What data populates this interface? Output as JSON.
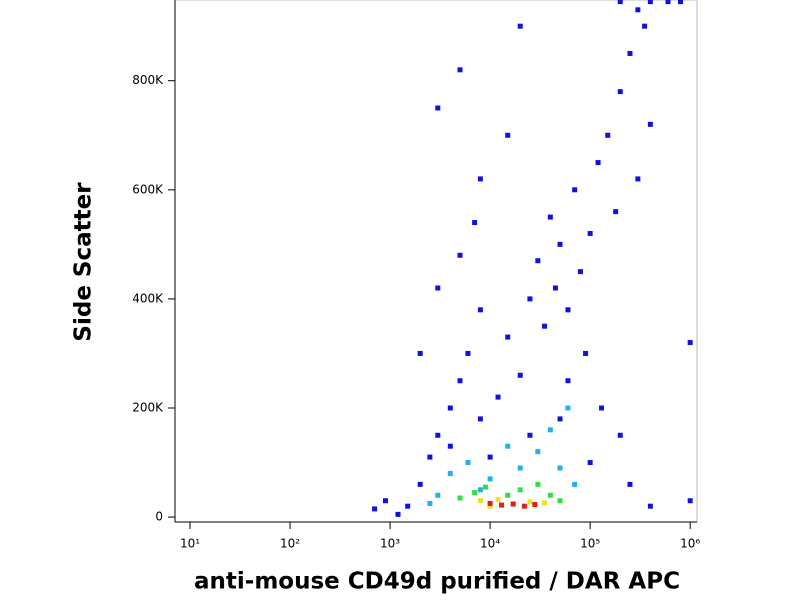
{
  "chart_data": {
    "type": "scatter",
    "xlabel": "anti-mouse CD49d purified / DAR APC",
    "ylabel": "Side Scatter",
    "xscale": "log",
    "xlim": [
      7.08,
      1170000
    ],
    "ylim": [
      -9000,
      948000
    ],
    "xticks": [
      {
        "value": 10,
        "label": "10¹"
      },
      {
        "value": 100,
        "label": "10²"
      },
      {
        "value": 1000,
        "label": "10³"
      },
      {
        "value": 10000,
        "label": "10⁴"
      },
      {
        "value": 100000,
        "label": "10⁵"
      },
      {
        "value": 1000000,
        "label": "10⁶"
      }
    ],
    "yticks": [
      0,
      {
        "value": 200000,
        "label": "200K"
      },
      {
        "value": 400000,
        "label": "400K"
      },
      {
        "value": 600000,
        "label": "600K"
      },
      {
        "value": 800000,
        "label": "800K"
      }
    ],
    "series": [
      {
        "color": "#1010e0",
        "x": [
          1500,
          2000,
          2500,
          3000,
          4000,
          5000,
          6000,
          8000,
          12000,
          15000,
          20000,
          25000,
          30000,
          35000,
          40000,
          45000,
          50000,
          60000,
          70000,
          80000,
          100000,
          120000,
          150000,
          180000,
          200000,
          250000,
          300000,
          350000,
          400000,
          300000,
          1200,
          900,
          700,
          3000,
          5000,
          2000,
          8000,
          60000,
          90000,
          130000,
          200000,
          250000,
          400000,
          1000000,
          1000000,
          200000,
          400000,
          600000,
          800000,
          10000,
          25000,
          50000,
          5000,
          3000,
          15000,
          8000,
          4000,
          100000,
          20000,
          7000
        ],
        "y": [
          20000,
          60000,
          110000,
          150000,
          200000,
          250000,
          300000,
          180000,
          220000,
          330000,
          260000,
          400000,
          470000,
          350000,
          550000,
          420000,
          500000,
          380000,
          600000,
          450000,
          520000,
          650000,
          700000,
          560000,
          780000,
          850000,
          620000,
          900000,
          720000,
          930000,
          5000,
          30000,
          15000,
          420000,
          480000,
          300000,
          380000,
          250000,
          300000,
          200000,
          150000,
          60000,
          20000,
          320000,
          30000,
          945000,
          945000,
          945000,
          945000,
          110000,
          150000,
          180000,
          820000,
          750000,
          700000,
          620000,
          130000,
          100000,
          900000,
          540000
        ]
      },
      {
        "color": "#20b0f0",
        "x": [
          3000,
          4000,
          6000,
          10000,
          20000,
          30000,
          40000,
          50000,
          70000,
          15000,
          8000,
          2500,
          60000
        ],
        "y": [
          40000,
          80000,
          100000,
          70000,
          90000,
          120000,
          160000,
          90000,
          60000,
          130000,
          50000,
          25000,
          200000
        ]
      },
      {
        "color": "#30e040",
        "x": [
          5000,
          7000,
          9000,
          20000,
          30000,
          40000,
          50000,
          15000
        ],
        "y": [
          35000,
          45000,
          55000,
          50000,
          60000,
          40000,
          30000,
          40000
        ]
      },
      {
        "color": "#f0e020",
        "x": [
          8000,
          12000,
          25000,
          35000,
          10000
        ],
        "y": [
          30000,
          32000,
          28000,
          26000,
          20000
        ]
      },
      {
        "color": "#e02010",
        "x": [
          10000,
          13000,
          17000,
          22000,
          28000
        ],
        "y": [
          25000,
          22000,
          24000,
          20000,
          23000
        ]
      }
    ]
  }
}
